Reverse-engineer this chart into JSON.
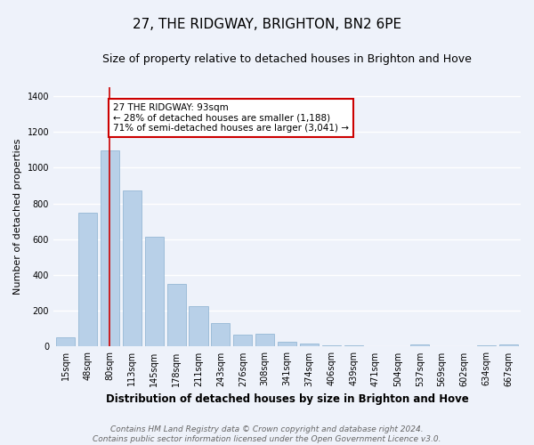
{
  "title": "27, THE RIDGWAY, BRIGHTON, BN2 6PE",
  "subtitle": "Size of property relative to detached houses in Brighton and Hove",
  "xlabel": "Distribution of detached houses by size in Brighton and Hove",
  "ylabel": "Number of detached properties",
  "footnote1": "Contains HM Land Registry data © Crown copyright and database right 2024.",
  "footnote2": "Contains public sector information licensed under the Open Government Licence v3.0.",
  "bar_labels": [
    "15sqm",
    "48sqm",
    "80sqm",
    "113sqm",
    "145sqm",
    "178sqm",
    "211sqm",
    "243sqm",
    "276sqm",
    "308sqm",
    "341sqm",
    "374sqm",
    "406sqm",
    "439sqm",
    "471sqm",
    "504sqm",
    "537sqm",
    "569sqm",
    "602sqm",
    "634sqm",
    "667sqm"
  ],
  "bar_values": [
    50,
    750,
    1095,
    870,
    615,
    348,
    228,
    132,
    65,
    70,
    28,
    18,
    5,
    5,
    0,
    0,
    10,
    0,
    0,
    5,
    10
  ],
  "bar_color": "#b8d0e8",
  "vline_x_index": 2,
  "vline_color": "#cc0000",
  "annotation_line1": "27 THE RIDGWAY: 93sqm",
  "annotation_line2": "← 28% of detached houses are smaller (1,188)",
  "annotation_line3": "71% of semi-detached houses are larger (3,041) →",
  "annotation_box_color": "#ffffff",
  "annotation_box_edge": "#cc0000",
  "ylim": [
    0,
    1450
  ],
  "yticks": [
    0,
    200,
    400,
    600,
    800,
    1000,
    1200,
    1400
  ],
  "background_color": "#eef2fa",
  "plot_bg_color": "#eef2fa",
  "grid_color": "#ffffff",
  "title_fontsize": 11,
  "subtitle_fontsize": 9,
  "xlabel_fontsize": 8.5,
  "ylabel_fontsize": 8,
  "tick_fontsize": 7,
  "annotation_fontsize": 7.5,
  "footnote_fontsize": 6.5
}
